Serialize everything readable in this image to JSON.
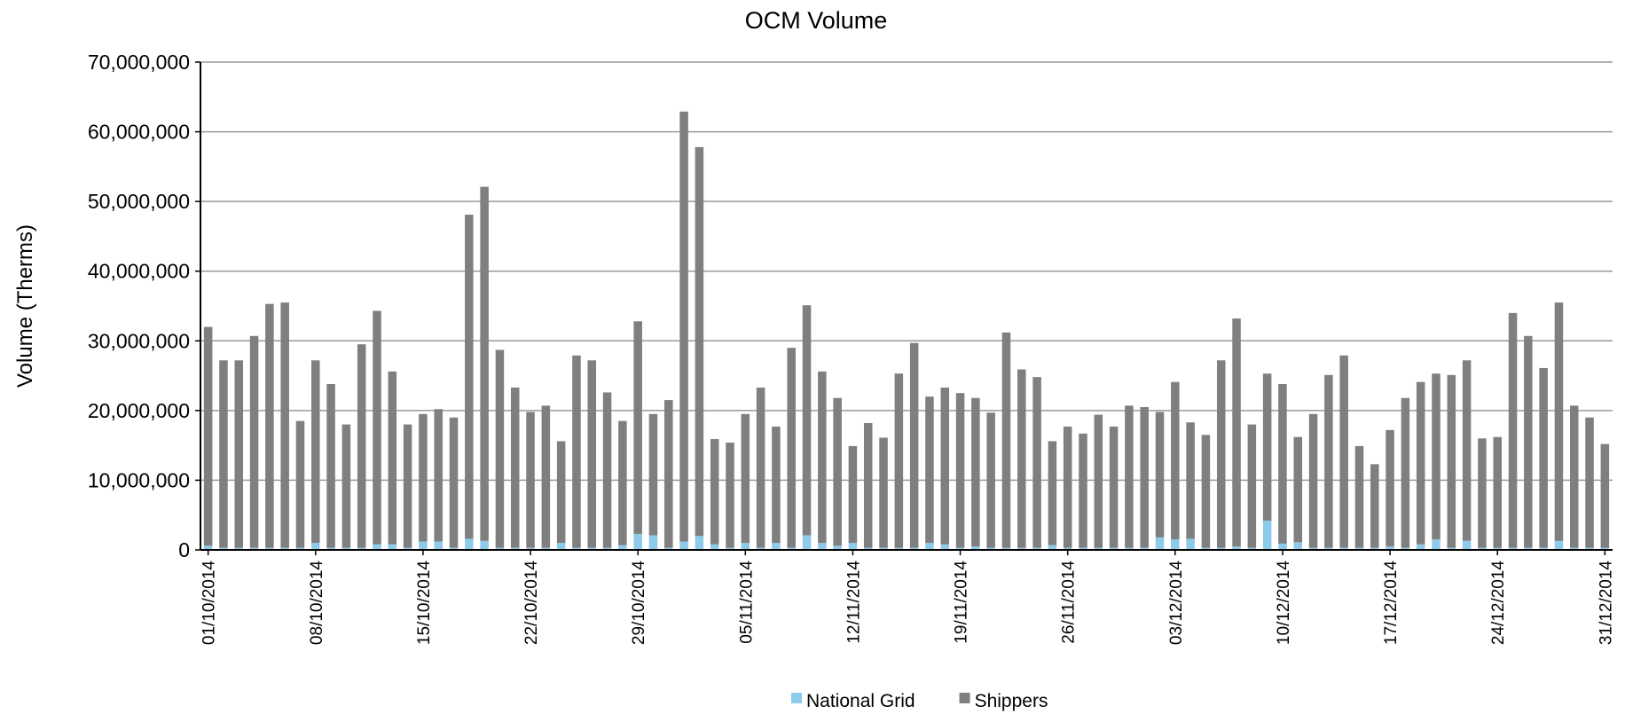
{
  "chart_data": {
    "type": "stacked_bar",
    "title": "OCM Volume",
    "y_label": "Volume (Therms)",
    "categories": [
      "01/10/2014",
      null,
      null,
      null,
      null,
      null,
      null,
      "08/10/2014",
      null,
      null,
      null,
      null,
      null,
      null,
      "15/10/2014",
      null,
      null,
      null,
      null,
      null,
      null,
      "22/10/2014",
      null,
      null,
      null,
      null,
      null,
      null,
      "29/10/2014",
      null,
      null,
      null,
      null,
      null,
      null,
      "05/11/2014",
      null,
      null,
      null,
      null,
      null,
      null,
      "12/11/2014",
      null,
      null,
      null,
      null,
      null,
      null,
      "19/11/2014",
      null,
      null,
      null,
      null,
      null,
      null,
      "26/11/2014",
      null,
      null,
      null,
      null,
      null,
      null,
      "03/12/2014",
      null,
      null,
      null,
      null,
      null,
      null,
      "10/12/2014",
      null,
      null,
      null,
      null,
      null,
      null,
      "17/12/2014",
      null,
      null,
      null,
      null,
      null,
      null,
      "24/12/2014",
      null,
      null,
      null,
      null,
      null,
      null,
      "31/12/2014"
    ],
    "series": [
      {
        "name": "National Grid",
        "color": "#8ccbea",
        "values": [
          600000,
          300000,
          300000,
          300000,
          300000,
          300000,
          300000,
          1000000,
          300000,
          300000,
          300000,
          800000,
          800000,
          300000,
          1200000,
          1200000,
          300000,
          1600000,
          1300000,
          300000,
          300000,
          300000,
          300000,
          1000000,
          300000,
          300000,
          300000,
          700000,
          2300000,
          2100000,
          300000,
          1200000,
          2000000,
          800000,
          300000,
          1000000,
          300000,
          1000000,
          300000,
          2100000,
          1000000,
          600000,
          1000000,
          300000,
          300000,
          300000,
          300000,
          1000000,
          800000,
          300000,
          500000,
          300000,
          300000,
          300000,
          300000,
          700000,
          300000,
          300000,
          300000,
          300000,
          300000,
          300000,
          1800000,
          1500000,
          1600000,
          300000,
          300000,
          500000,
          300000,
          4200000,
          900000,
          1100000,
          300000,
          300000,
          300000,
          300000,
          300000,
          500000,
          300000,
          800000,
          1500000,
          300000,
          1300000,
          300000,
          300000,
          300000,
          300000,
          300000,
          1300000,
          300000,
          300000,
          300000
        ]
      },
      {
        "name": "Shippers",
        "color": "#7f7f7f",
        "values": [
          31400000,
          26900000,
          26900000,
          30400000,
          35000000,
          35200000,
          18200000,
          26200000,
          23500000,
          17700000,
          29200000,
          33500000,
          24800000,
          17700000,
          18300000,
          19000000,
          18700000,
          46500000,
          50800000,
          28400000,
          23000000,
          19500000,
          20400000,
          14600000,
          27600000,
          26900000,
          22300000,
          17800000,
          30500000,
          17400000,
          21200000,
          61700000,
          55800000,
          15100000,
          15100000,
          18500000,
          23000000,
          16700000,
          28700000,
          33000000,
          24600000,
          21200000,
          13900000,
          17900000,
          15800000,
          25000000,
          29400000,
          21000000,
          22500000,
          22200000,
          21300000,
          19400000,
          30900000,
          25600000,
          24500000,
          14900000,
          17400000,
          16400000,
          19100000,
          17400000,
          20400000,
          20200000,
          18000000,
          22600000,
          16700000,
          16200000,
          26900000,
          32700000,
          17700000,
          21100000,
          22900000,
          15100000,
          19200000,
          24800000,
          27600000,
          14600000,
          12000000,
          16700000,
          21500000,
          23300000,
          23800000,
          24800000,
          25900000,
          15700000,
          15900000,
          33700000,
          30400000,
          25800000,
          34200000,
          20400000,
          18700000,
          14900000
        ]
      }
    ],
    "ylim": [
      0,
      70000000
    ],
    "yticks": [
      0,
      {
        "value": 10000000,
        "label": "10,000,000"
      },
      {
        "value": 20000000,
        "label": "20,000,000"
      },
      {
        "value": 30000000,
        "label": "30,000,000"
      },
      {
        "value": 40000000,
        "label": "40,000,000"
      },
      {
        "value": 50000000,
        "label": "50,000,000"
      },
      {
        "value": 60000000,
        "label": "60,000,000"
      },
      {
        "value": 70000000,
        "label": "70,000,000"
      }
    ],
    "grid": true,
    "legend": "bottom"
  }
}
